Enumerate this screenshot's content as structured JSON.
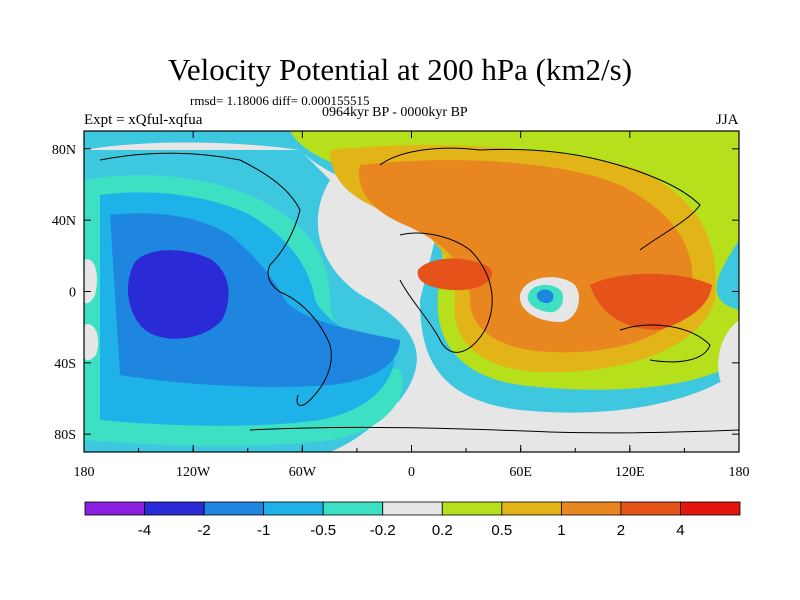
{
  "title": "Velocity Potential at 200 hPa (km2/s)",
  "stats_line": "rmsd= 1.18006 diff= 0.000155515",
  "period_line": "0964kyr BP - 0000kyr BP",
  "experiment_label": "Expt = xQful-xqfua",
  "season_label": "JJA",
  "axes": {
    "x_ticks": [
      "180",
      "120W",
      "60W",
      "0",
      "60E",
      "120E",
      "180"
    ],
    "y_ticks": [
      "80N",
      "40N",
      "0",
      "40S",
      "80S"
    ]
  },
  "colorbar": {
    "labels": [
      "-4",
      "-2",
      "-1",
      "-0.5",
      "-0.2",
      "0.2",
      "0.5",
      "1",
      "2",
      "4"
    ],
    "colors": [
      "#8a1fe0",
      "#2a2ad6",
      "#1f86e0",
      "#1fb2e8",
      "#3ee0c4",
      "#e6e6e6",
      "#b7e01c",
      "#e3b417",
      "#e8861f",
      "#e5521a",
      "#e3160f"
    ]
  },
  "map_fields": {
    "background": "#3ec8e0",
    "land_outline_color": "#000000"
  }
}
